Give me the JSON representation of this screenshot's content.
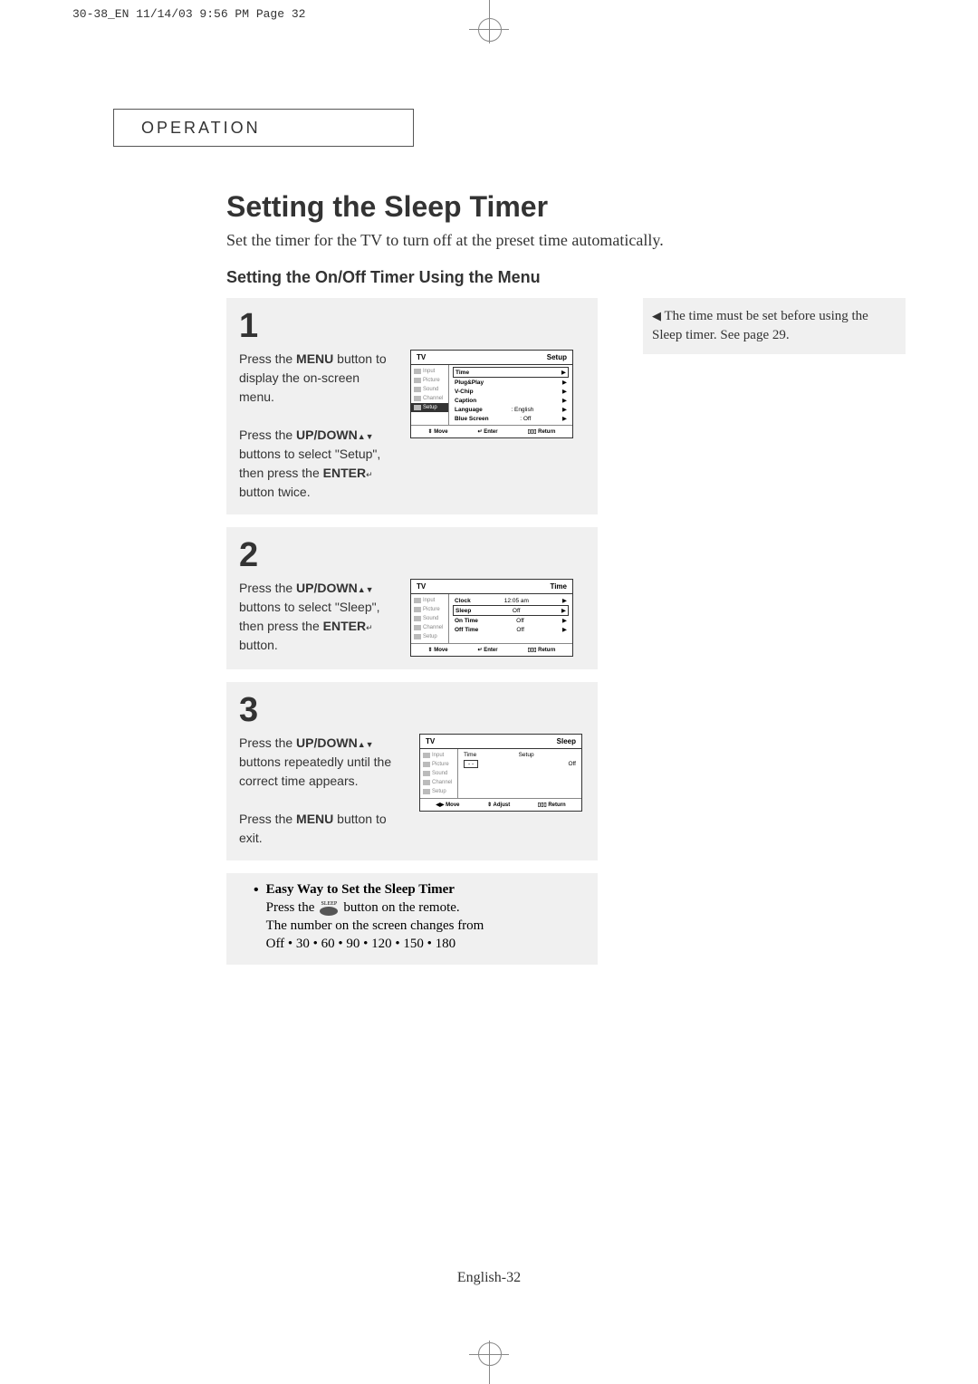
{
  "print_header": "30-38_EN  11/14/03 9:56 PM  Page 32",
  "section_label": "OPERATION",
  "main_title": "Setting the Sleep Timer",
  "main_intro": "Set the timer for the TV to turn off at the preset time automatically.",
  "sub_title": "Setting the On/Off  Timer Using the Menu",
  "note_text": "The time must be set before using the Sleep timer. See page 29.",
  "step1": {
    "num": "1",
    "text_parts": [
      "Press the ",
      "MENU",
      " button to display the on-screen menu.",
      "Press the ",
      "UP/DOWN",
      " buttons to select \"Setup\", then press the ",
      "ENTER",
      " button twice."
    ],
    "tv": {
      "header_left": "TV",
      "header_right": "Setup",
      "side": [
        "Input",
        "Picture",
        "Sound",
        "Channel",
        "Setup"
      ],
      "side_active": 4,
      "rows": [
        {
          "l": "Time",
          "r": "▶",
          "sel": true
        },
        {
          "l": "Plug&Play",
          "r": "▶"
        },
        {
          "l": "V-Chip",
          "r": "▶"
        },
        {
          "l": "Caption",
          "r": "▶"
        },
        {
          "l": "Language",
          "m": ": English",
          "r": "▶"
        },
        {
          "l": "Blue Screen",
          "m": ": Off",
          "r": "▶"
        }
      ],
      "footer": [
        "⇕ Move",
        "↵ Enter",
        "▯▯▯ Return"
      ]
    }
  },
  "step2": {
    "num": "2",
    "text_parts": [
      "Press the ",
      "UP/DOWN",
      " buttons to select \"Sleep\", then press the ",
      "ENTER",
      " button."
    ],
    "tv": {
      "header_left": "TV",
      "header_right": "Time",
      "side": [
        "Input",
        "Picture",
        "Sound",
        "Channel",
        "Setup"
      ],
      "side_active": -1,
      "rows": [
        {
          "l": "Clock",
          "m": "12:05 am",
          "r": "▶"
        },
        {
          "l": "Sleep",
          "m": "Off",
          "r": "▶",
          "sel": true
        },
        {
          "l": "On Time",
          "m": "Off",
          "r": "▶"
        },
        {
          "l": "Off Time",
          "m": "Off",
          "r": "▶"
        }
      ],
      "footer": [
        "⇕ Move",
        "↵ Enter",
        "▯▯▯ Return"
      ]
    }
  },
  "step3": {
    "num": "3",
    "text_parts": [
      "Press the ",
      "UP/DOWN",
      " buttons repeatedly until the correct time appears.",
      "Press the ",
      "MENU",
      " button to exit."
    ],
    "tv": {
      "header_left": "TV",
      "header_right": "Sleep",
      "side": [
        "Input",
        "Picture",
        "Sound",
        "Channel",
        "Setup"
      ],
      "side_active": -1,
      "rows": [
        {
          "l": "Time",
          "m": "Setup",
          "header": true
        },
        {
          "l": "- -",
          "m": "Off",
          "boxed": true
        }
      ],
      "footer": [
        "◀▶ Move",
        "⇕ Adjust",
        "▯▯▯ Return"
      ]
    }
  },
  "easy": {
    "title": "Easy Way to Set the Sleep Timer",
    "line1a": "Press the",
    "sleep_label": "SLEEP",
    "line1b": "button on the remote.",
    "line2": "The number on the screen changes from",
    "line3": "Off • 30 • 60 • 90 • 120 • 150 • 180"
  },
  "page_num_prefix": "English-",
  "page_num": "32",
  "colors": {
    "bg_gray": "#f0f0f0",
    "text": "#333333",
    "border": "#555555"
  }
}
